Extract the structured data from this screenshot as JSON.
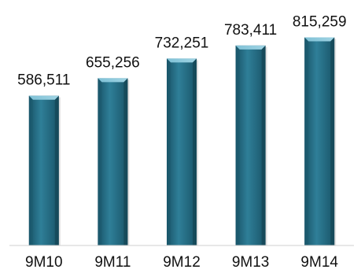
{
  "chart_data": {
    "type": "bar",
    "categories": [
      "9M10",
      "9M11",
      "9M12",
      "9M13",
      "9M14"
    ],
    "values": [
      586511,
      655256,
      732251,
      783411,
      815259
    ],
    "data_labels": [
      "586,511",
      "655,256",
      "732,251",
      "783,411",
      "815,259"
    ],
    "title": "",
    "xlabel": "",
    "ylabel": "",
    "ylim": [
      0,
      900000
    ],
    "grid": false,
    "legend": "none",
    "colors": {
      "bar_fill": "#2f7f98",
      "bar_dark": "#195468",
      "bar_light": "#7fc1d6",
      "bar_top": "#9fd3e3",
      "axis_line": "#cfcfcf",
      "text": "#111111"
    }
  }
}
